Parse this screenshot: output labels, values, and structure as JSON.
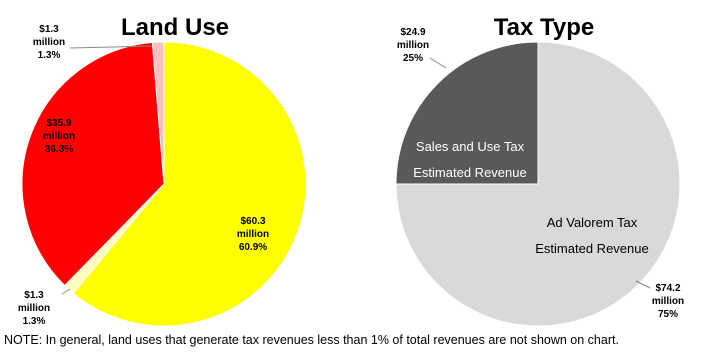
{
  "chart_data": [
    {
      "type": "pie",
      "title": "Land Use",
      "slices": [
        {
          "value": 60.9,
          "color": "#ffff00",
          "label": [
            "$60.3",
            "million",
            "60.9%"
          ]
        },
        {
          "value": 1.3,
          "color": "#ffffbf",
          "label": [
            "$1.3",
            "million",
            "1.3%"
          ]
        },
        {
          "value": 36.3,
          "color": "#ff0000",
          "label": [
            "$35.9",
            "million",
            "36.3%"
          ]
        },
        {
          "value": 1.3,
          "color": "#ffbfbf",
          "label": [
            "$1.3",
            "million",
            "1.3%"
          ]
        }
      ]
    },
    {
      "type": "pie",
      "title": "Tax Type",
      "slices": [
        {
          "value": 75,
          "color": "#d9d9d9",
          "label": [
            "$74.2",
            "million",
            "75%"
          ],
          "inner_label": [
            "Ad Valorem Tax",
            "Estimated Revenue"
          ]
        },
        {
          "value": 25,
          "color": "#595959",
          "label": [
            "$24.9",
            "million",
            "25%"
          ],
          "inner_label": [
            "Sales and Use Tax",
            "Estimated Revenue"
          ]
        }
      ]
    }
  ],
  "note": "NOTE: In general, land uses that generate tax revenues less than 1% of total revenues are not shown on chart."
}
